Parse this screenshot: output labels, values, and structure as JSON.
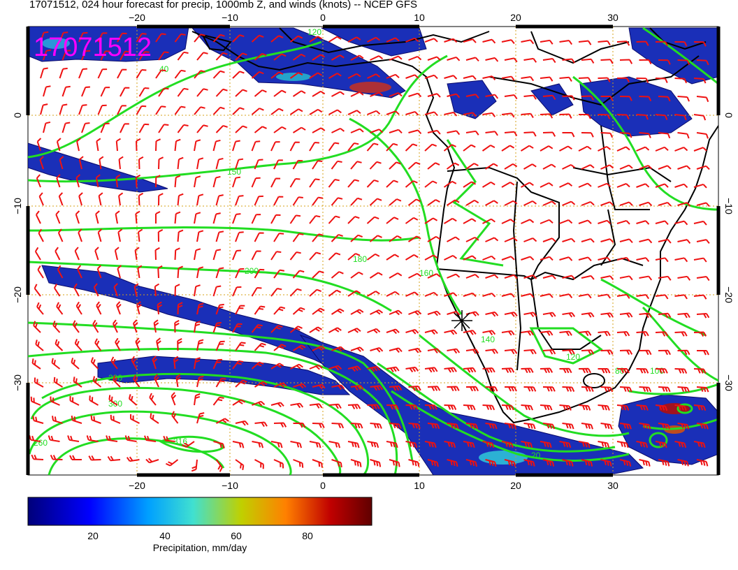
{
  "title": "17071512, 024 hour forecast for precip, 1000mb Z, and winds (knots) -- NCEP GFS",
  "stamp": "17071512",
  "axes": {
    "lon_ticks": [
      -20,
      -10,
      0,
      10,
      20,
      30
    ],
    "lon_labels": [
      "−20",
      "−10",
      "0",
      "10",
      "20",
      "30"
    ],
    "lat_ticks": [
      0,
      -10,
      -20,
      -30
    ],
    "lat_labels": [
      "0",
      "−10",
      "−20",
      "−30"
    ],
    "lon_range": [
      -30,
      40
    ],
    "lat_range": [
      -40,
      10
    ]
  },
  "contour_labels": [
    "40",
    "120",
    "150",
    "180",
    "200",
    "160",
    "260",
    "280",
    "300",
    "316",
    "140",
    "120",
    "100",
    "80",
    "20"
  ],
  "colorbar": {
    "ticks": [
      20,
      40,
      60,
      80
    ],
    "tick_labels": [
      "20",
      "40",
      "60",
      "80"
    ],
    "range": [
      0,
      100
    ],
    "label": "Precipitation, mm/day",
    "colors": [
      "#00007a",
      "#0000ff",
      "#00a0ff",
      "#40e0d0",
      "#c0d000",
      "#ff8000",
      "#c00000",
      "#600000"
    ]
  },
  "colors": {
    "contour": "#22dd22",
    "barb": "#ee1111",
    "coast": "#000000",
    "grid": "#d4a017",
    "stamp": "#ff00ff",
    "precip_dark": "#0a0a8a",
    "precip_mid": "#2a3fd0"
  }
}
